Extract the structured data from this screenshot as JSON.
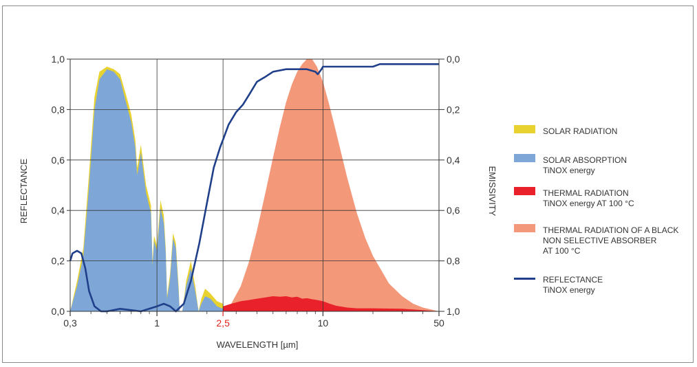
{
  "chart_data": {
    "type": "area",
    "xlabel": "WAVELENGTH [µm]",
    "ylabel": "REFLECTANCE",
    "y2label": "EMISSIVITY",
    "x_scale": "log",
    "xlim": [
      0.3,
      50
    ],
    "ylim": [
      0,
      1
    ],
    "y2lim": [
      1,
      0
    ],
    "grid": true,
    "legend_position": "right",
    "x_ticks": [
      {
        "value": 0.3,
        "label": "0,3",
        "color": "#333333"
      },
      {
        "value": 1,
        "label": "1",
        "color": "#333333"
      },
      {
        "value": 2.5,
        "label": "2,5",
        "color": "#e2231a"
      },
      {
        "value": 10,
        "label": "10",
        "color": "#333333"
      },
      {
        "value": 50,
        "label": "50",
        "color": "#333333"
      }
    ],
    "y_ticks": [
      {
        "value": 0.0,
        "label": "0,0"
      },
      {
        "value": 0.2,
        "label": "0,2"
      },
      {
        "value": 0.4,
        "label": "0,4"
      },
      {
        "value": 0.6,
        "label": "0,6"
      },
      {
        "value": 0.8,
        "label": "0,8"
      },
      {
        "value": 1.0,
        "label": "1,0"
      }
    ],
    "y2_ticks": [
      {
        "value": 0.0,
        "label": "0,0"
      },
      {
        "value": 0.2,
        "label": "0,2"
      },
      {
        "value": 0.4,
        "label": "0,4"
      },
      {
        "value": 0.6,
        "label": "0,6"
      },
      {
        "value": 0.8,
        "label": "0,8"
      },
      {
        "value": 1.0,
        "label": "1,0"
      }
    ],
    "legend": [
      {
        "key": "solar_radiation",
        "label": "SOLAR RADIATION",
        "sublabel": "",
        "color": "#e8d230",
        "kind": "area"
      },
      {
        "key": "solar_absorption",
        "label": "SOLAR ABSORPTION",
        "sublabel": "TiNOX energy",
        "color": "#7ea7d8",
        "kind": "area"
      },
      {
        "key": "thermal_radiation",
        "label": "THERMAL RADIATION",
        "sublabel": "TiNOX energy AT 100 °C",
        "color": "#e8212a",
        "kind": "area"
      },
      {
        "key": "black_body",
        "label": "THERMAL RADIATION OF A BLACK",
        "sublabel": "NON SELECTIVE ABSORBER|AT 100 °C",
        "color": "#f4987a",
        "kind": "area"
      },
      {
        "key": "reflectance",
        "label": "REFLECTANCE",
        "sublabel": "TiNOX energy",
        "color": "#1f3f8a",
        "kind": "line"
      }
    ],
    "series": [
      {
        "key": "black_body",
        "x": [
          2.5,
          2.8,
          3.2,
          3.6,
          4.0,
          4.5,
          5.0,
          5.5,
          6.0,
          6.5,
          7.0,
          7.5,
          8.0,
          8.6,
          9.2,
          10.0,
          11.0,
          12.0,
          14.0,
          16.0,
          18.0,
          20.0,
          25.0,
          30.0,
          35.0,
          40.0,
          50.0
        ],
        "y": [
          0.0,
          0.03,
          0.1,
          0.2,
          0.32,
          0.47,
          0.61,
          0.73,
          0.83,
          0.9,
          0.95,
          0.98,
          1.0,
          1.0,
          0.97,
          0.91,
          0.81,
          0.71,
          0.53,
          0.39,
          0.29,
          0.22,
          0.11,
          0.06,
          0.03,
          0.015,
          0.0
        ]
      },
      {
        "key": "solar_radiation",
        "x": [
          0.3,
          0.33,
          0.36,
          0.39,
          0.42,
          0.45,
          0.5,
          0.55,
          0.6,
          0.65,
          0.7,
          0.74,
          0.76,
          0.8,
          0.86,
          0.92,
          0.94,
          0.96,
          1.0,
          1.05,
          1.1,
          1.13,
          1.15,
          1.2,
          1.25,
          1.3,
          1.35,
          1.37,
          1.42,
          1.5,
          1.6,
          1.7,
          1.78,
          1.85,
          1.95,
          2.1,
          2.3,
          2.5
        ],
        "y": [
          0.0,
          0.12,
          0.25,
          0.55,
          0.85,
          0.95,
          0.97,
          0.96,
          0.94,
          0.86,
          0.78,
          0.68,
          0.57,
          0.66,
          0.5,
          0.42,
          0.2,
          0.3,
          0.26,
          0.44,
          0.38,
          0.25,
          0.06,
          0.15,
          0.31,
          0.27,
          0.1,
          0.0,
          0.0,
          0.12,
          0.2,
          0.1,
          0.0,
          0.05,
          0.09,
          0.07,
          0.04,
          0.03
        ]
      },
      {
        "key": "solar_absorption",
        "x": [
          0.3,
          0.33,
          0.36,
          0.39,
          0.42,
          0.45,
          0.5,
          0.55,
          0.6,
          0.65,
          0.7,
          0.74,
          0.76,
          0.8,
          0.86,
          0.92,
          0.94,
          0.96,
          1.0,
          1.05,
          1.1,
          1.13,
          1.15,
          1.2,
          1.25,
          1.3,
          1.35,
          1.37,
          1.42,
          1.5,
          1.6,
          1.7,
          1.78,
          1.85,
          1.95,
          2.1,
          2.3,
          2.5
        ],
        "y": [
          0.0,
          0.1,
          0.22,
          0.5,
          0.8,
          0.92,
          0.96,
          0.95,
          0.92,
          0.83,
          0.75,
          0.65,
          0.54,
          0.63,
          0.47,
          0.39,
          0.18,
          0.28,
          0.24,
          0.41,
          0.35,
          0.23,
          0.05,
          0.13,
          0.29,
          0.25,
          0.08,
          0.0,
          0.0,
          0.1,
          0.17,
          0.08,
          0.0,
          0.03,
          0.06,
          0.05,
          0.02,
          0.01
        ]
      },
      {
        "key": "thermal_radiation",
        "x": [
          2.5,
          2.8,
          3.2,
          3.6,
          4.0,
          4.5,
          5.0,
          5.5,
          6.0,
          6.5,
          7.0,
          7.5,
          8.0,
          8.6,
          9.2,
          10.0,
          11.0,
          12.0,
          14.0,
          16.0,
          20.0,
          30.0,
          40.0,
          50.0
        ],
        "y": [
          0.02,
          0.03,
          0.04,
          0.045,
          0.05,
          0.055,
          0.06,
          0.058,
          0.06,
          0.055,
          0.058,
          0.05,
          0.052,
          0.048,
          0.045,
          0.04,
          0.03,
          0.022,
          0.015,
          0.012,
          0.012,
          0.01,
          0.005,
          0.0
        ]
      },
      {
        "key": "reflectance",
        "x": [
          0.3,
          0.31,
          0.33,
          0.35,
          0.37,
          0.39,
          0.42,
          0.46,
          0.5,
          0.6,
          0.8,
          1.0,
          1.1,
          1.2,
          1.3,
          1.45,
          1.6,
          1.8,
          2.0,
          2.2,
          2.4,
          2.5,
          2.7,
          3.0,
          3.3,
          3.6,
          4.0,
          4.5,
          5.0,
          6.0,
          7.0,
          8.0,
          9.0,
          9.3,
          9.8,
          10.0,
          12.0,
          15.0,
          20.0,
          22.0,
          30.0,
          40.0,
          50.0
        ],
        "y": [
          0.2,
          0.23,
          0.24,
          0.23,
          0.17,
          0.08,
          0.02,
          0.0,
          0.0,
          0.01,
          0.0,
          0.02,
          0.03,
          0.02,
          0.0,
          0.03,
          0.12,
          0.27,
          0.43,
          0.57,
          0.65,
          0.68,
          0.74,
          0.79,
          0.82,
          0.86,
          0.91,
          0.93,
          0.95,
          0.96,
          0.96,
          0.96,
          0.95,
          0.94,
          0.96,
          0.97,
          0.97,
          0.97,
          0.97,
          0.98,
          0.98,
          0.98,
          0.98
        ]
      }
    ]
  }
}
